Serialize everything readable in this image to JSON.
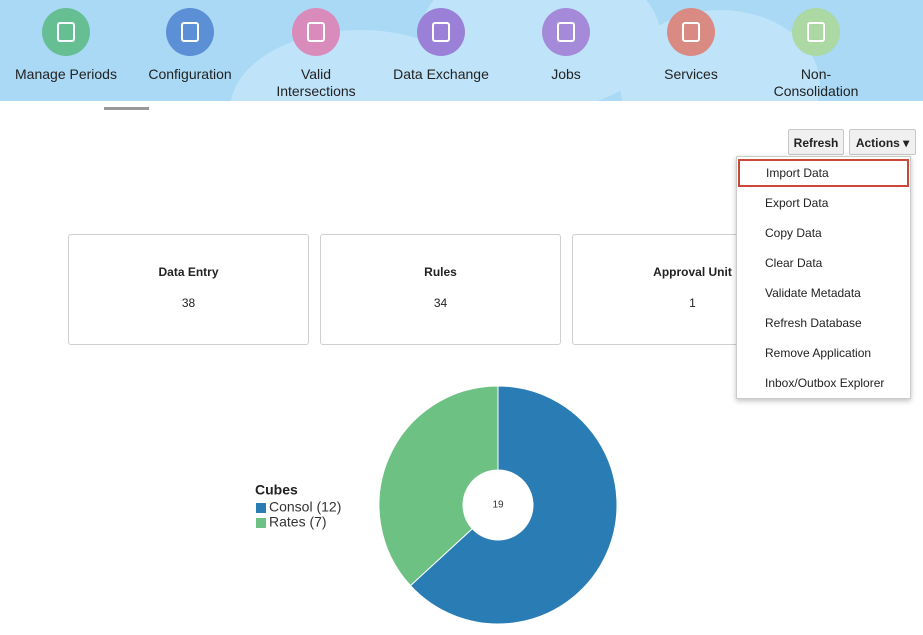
{
  "nav": [
    {
      "label": "Manage Periods",
      "color": "#66bf93"
    },
    {
      "label": "Configuration",
      "color": "#5b8fd6"
    },
    {
      "label": "Valid Intersections",
      "color": "#d98cbc"
    },
    {
      "label": "Data Exchange",
      "color": "#9a80d6"
    },
    {
      "label": "Jobs",
      "color": "#a48ad8"
    },
    {
      "label": "Services",
      "color": "#d98a82"
    },
    {
      "label": "Non-Consolidation Reports",
      "color": "#acd8a4"
    }
  ],
  "buttons": {
    "refresh": "Refresh",
    "actions": "Actions"
  },
  "menu": [
    "Import Data",
    "Export Data",
    "Copy Data",
    "Clear Data",
    "Validate Metadata",
    "Refresh Database",
    "Remove Application",
    "Inbox/Outbox Explorer"
  ],
  "cards": [
    {
      "title": "Data Entry",
      "value": 38
    },
    {
      "title": "Rules",
      "value": 34
    },
    {
      "title": "Approval Unit",
      "value": 1
    }
  ],
  "chart_data": {
    "type": "pie",
    "title": "Cubes",
    "categories": [
      "Consol (12)",
      "Rates (7)"
    ],
    "values": [
      12,
      7
    ],
    "colors": [
      "#2a7db4",
      "#6cc183"
    ],
    "total": 19
  }
}
